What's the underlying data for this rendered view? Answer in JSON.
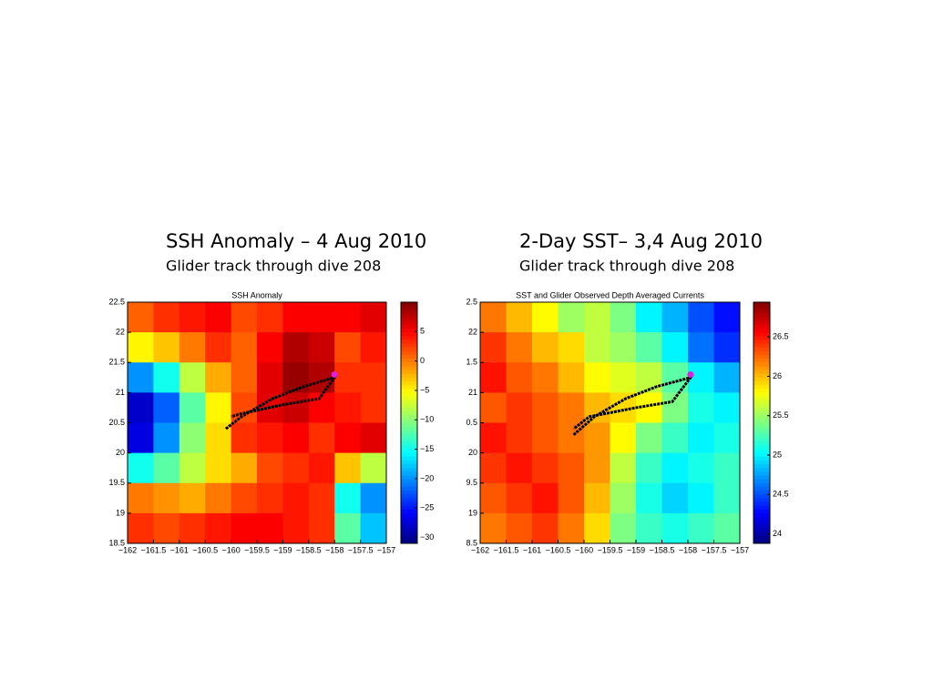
{
  "chart_data": [
    {
      "type": "heatmap",
      "slide_title": "SSH Anomaly – 4 Aug 2010",
      "slide_subtitle": "Glider track through dive 208",
      "title": "SSH Anomaly",
      "colormap": "jet",
      "xlim": [
        -162,
        -157
      ],
      "ylim": [
        18.5,
        22.5
      ],
      "xticks": [
        {
          "value": -162,
          "label": "−162"
        },
        {
          "value": -161.5,
          "label": "−161.5"
        },
        {
          "value": -161,
          "label": "−161"
        },
        {
          "value": -160.5,
          "label": "−160.5"
        },
        {
          "value": -160,
          "label": "−160"
        },
        {
          "value": -159.5,
          "label": "−159.5"
        },
        {
          "value": -159,
          "label": "−159"
        },
        {
          "value": -158.5,
          "label": "−158.5"
        },
        {
          "value": -158,
          "label": "−158"
        },
        {
          "value": -157.5,
          "label": "−157.5"
        },
        {
          "value": -157,
          "label": "−157"
        }
      ],
      "yticks": [
        18.5,
        19,
        19.5,
        20,
        20.5,
        21,
        21.5,
        22,
        22.5
      ],
      "clim": [
        -31,
        10
      ],
      "cticks": [
        {
          "value": -30,
          "label": "−30"
        },
        {
          "value": -25,
          "label": "−25"
        },
        {
          "value": -20,
          "label": "−20"
        },
        {
          "value": -15,
          "label": "−15"
        },
        {
          "value": -10,
          "label": "−10"
        },
        {
          "value": -5,
          "label": "−5"
        },
        0,
        5
      ],
      "values": [
        [
          1,
          3,
          4,
          5,
          2,
          3,
          5,
          5,
          5,
          6
        ],
        [
          -5,
          -3,
          0,
          3,
          1,
          5,
          8,
          7,
          2,
          4
        ],
        [
          -20,
          -15,
          -8,
          -2,
          1,
          6,
          9,
          8,
          3,
          3
        ],
        [
          -28,
          -22,
          -12,
          -5,
          2,
          6,
          7,
          5,
          4,
          3
        ],
        [
          -27,
          -20,
          -10,
          -4,
          3,
          4,
          5,
          3,
          5,
          6
        ],
        [
          -15,
          -12,
          -8,
          -4,
          -2,
          2,
          3,
          4,
          -3,
          -8
        ],
        [
          0,
          -1,
          -2,
          0,
          2,
          3,
          4,
          3,
          -15,
          -20
        ],
        [
          3,
          2,
          3,
          4,
          5,
          5,
          4,
          3,
          -12,
          -18
        ]
      ],
      "track": {
        "x": [
          -160.1,
          -159.8,
          -159.2,
          -158.6,
          -158.0,
          -158.3,
          -159.0,
          -159.8,
          -160.0
        ],
        "y": [
          20.4,
          20.6,
          20.9,
          21.1,
          21.25,
          20.9,
          20.8,
          20.65,
          20.6
        ]
      },
      "marker": {
        "x": -158.0,
        "y": 21.3,
        "color": "#e020e0"
      }
    },
    {
      "type": "heatmap",
      "slide_title": "2-Day SST– 3,4 Aug 2010",
      "slide_subtitle": "Glider track through dive 208",
      "title": "SST and Glider Observed Depth Averaged Currents",
      "colormap": "jet",
      "xlim": [
        -162,
        -157
      ],
      "ylim": [
        18.5,
        22.5
      ],
      "xticks": [
        {
          "value": -162,
          "label": "−162"
        },
        {
          "value": -161.5,
          "label": "−161.5"
        },
        {
          "value": -161,
          "label": "−161"
        },
        {
          "value": -160.5,
          "label": "−160.5"
        },
        {
          "value": -160,
          "label": "−160"
        },
        {
          "value": -159.5,
          "label": "−159.5"
        },
        {
          "value": -159,
          "label": "−159"
        },
        {
          "value": -158.5,
          "label": "−158.5"
        },
        {
          "value": -158,
          "label": "−158"
        },
        {
          "value": -157.5,
          "label": "−157.5"
        },
        {
          "value": -157,
          "label": "−157"
        }
      ],
      "yticks": [
        {
          "value": 18.5,
          "label": "8.5"
        },
        19,
        {
          "value": 19.5,
          "label": "9.5"
        },
        20,
        {
          "value": 20.5,
          "label": "0.5"
        },
        21,
        {
          "value": 21.5,
          "label": "1.5"
        },
        22,
        {
          "value": 22.5,
          "label": "2.5"
        }
      ],
      "clim": [
        23.88,
        26.94
      ],
      "cticks": [
        24,
        24.5,
        25,
        25.5,
        26,
        26.5
      ],
      "values": [
        [
          26.2,
          26,
          25.8,
          25.5,
          25.6,
          25.4,
          25,
          24.8,
          24.5,
          24.3
        ],
        [
          26.4,
          26.2,
          26,
          25.9,
          25.6,
          25.5,
          25.3,
          25,
          24.6,
          24.4
        ],
        [
          26.5,
          26.3,
          26.2,
          26,
          25.8,
          25.7,
          25.6,
          25.3,
          25,
          24.8
        ],
        [
          26.3,
          26.4,
          26.3,
          26.2,
          26,
          25.9,
          25.8,
          25.4,
          25.1,
          25
        ],
        [
          26.5,
          26.4,
          26.3,
          26.2,
          26.1,
          25.8,
          25.4,
          25.2,
          25,
          25.1
        ],
        [
          26.4,
          26.5,
          26.4,
          26.3,
          26.1,
          25.6,
          25.2,
          25,
          25.1,
          25.2
        ],
        [
          26.3,
          26.4,
          26.5,
          26.3,
          26,
          25.5,
          25.1,
          24.9,
          25,
          25.2
        ],
        [
          26.2,
          26.3,
          26.4,
          26.2,
          25.9,
          25.4,
          25.2,
          25.1,
          25.2,
          25.3
        ]
      ],
      "track": {
        "x": [
          -160.2,
          -159.8,
          -159.2,
          -158.6,
          -157.95,
          -158.3,
          -159.0,
          -159.9,
          -160.2
        ],
        "y": [
          20.3,
          20.6,
          20.9,
          21.1,
          21.25,
          20.85,
          20.75,
          20.6,
          20.4
        ]
      },
      "marker": {
        "x": -157.95,
        "y": 21.3,
        "color": "#e020e0"
      }
    }
  ]
}
